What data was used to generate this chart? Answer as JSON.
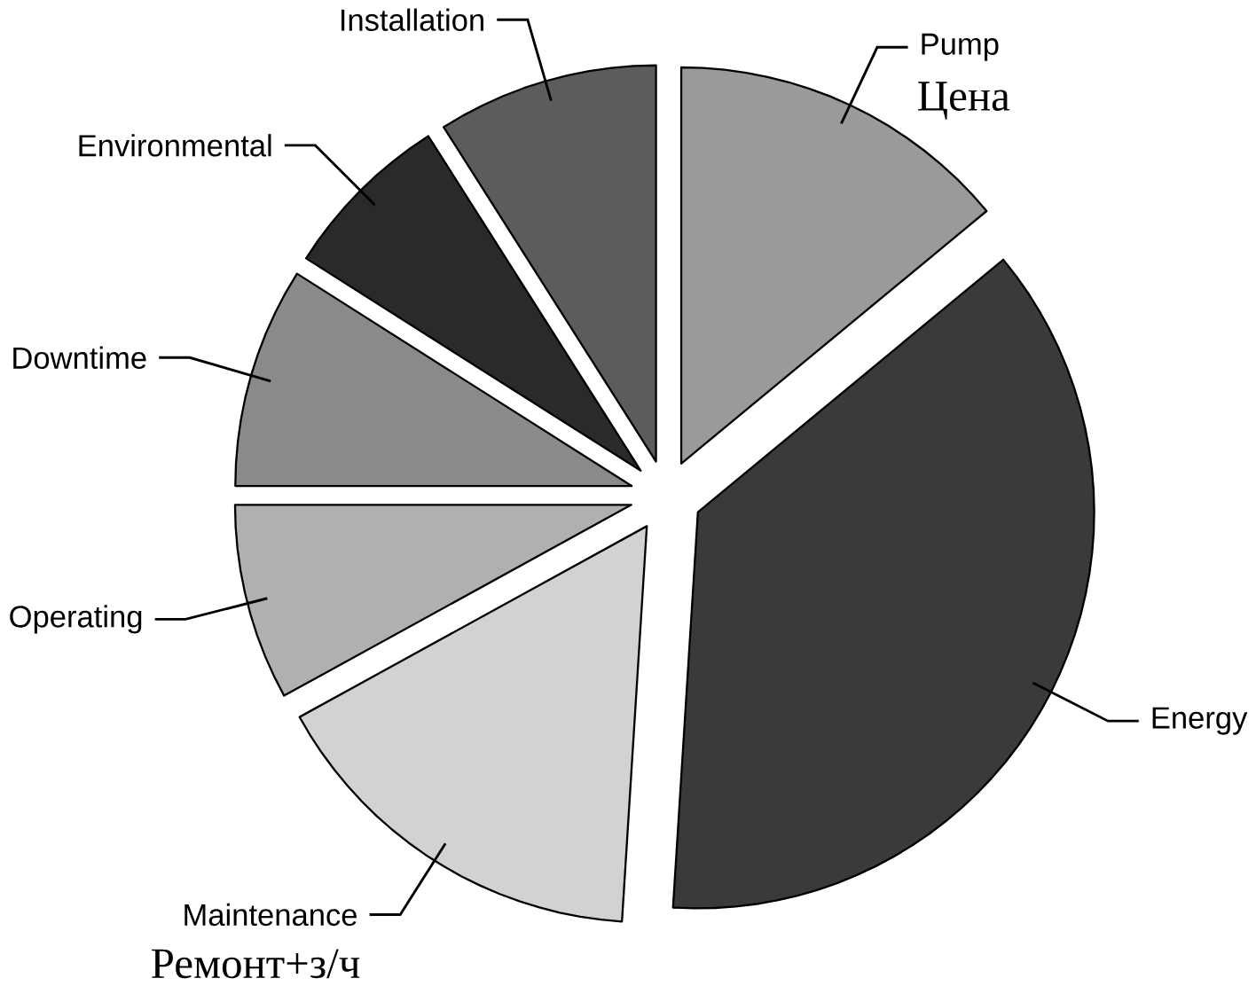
{
  "chart_data": {
    "type": "pie",
    "categories": [
      "Pump",
      "Energy",
      "Maintenance",
      "Operating",
      "Downtime",
      "Environmental",
      "Installation"
    ],
    "values": [
      14,
      37,
      16,
      8,
      9,
      7,
      9
    ],
    "colors": [
      "#9a9a9a",
      "#3a3a3a",
      "#d2d2d2",
      "#b0b0b0",
      "#8a8a8a",
      "#2a2a2a",
      "#5c5c5c"
    ],
    "annotations": [
      "Цена",
      "Ремонт+з/ч"
    ]
  }
}
